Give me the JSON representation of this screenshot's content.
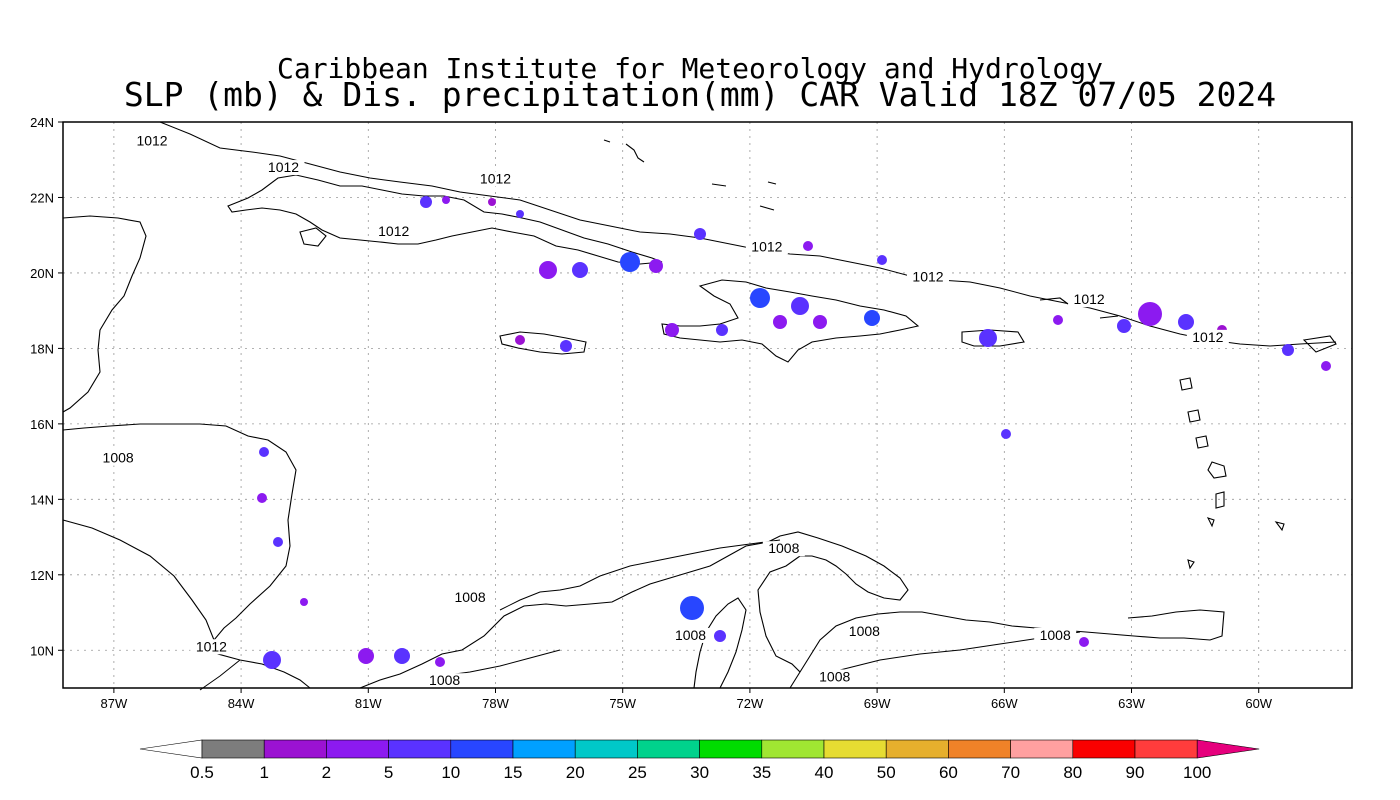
{
  "title": {
    "line1": "Caribbean Institute for Meteorology and Hydrology",
    "line2": "SLP (mb) & Dis. precipitation(mm) CAR Valid 18Z 07/05 2024"
  },
  "map": {
    "lon_range": [
      -88.2,
      -57.8
    ],
    "lat_range": [
      9,
      24
    ],
    "x_ticks": [
      "87W",
      "84W",
      "81W",
      "78W",
      "75W",
      "72W",
      "69W",
      "66W",
      "63W",
      "60W"
    ],
    "y_ticks": [
      "24N",
      "22N",
      "20N",
      "18N",
      "16N",
      "14N",
      "12N",
      "10N"
    ],
    "grid": true,
    "contour_labels": [
      {
        "text": "1012",
        "lon": -86.1,
        "lat": 23.4
      },
      {
        "text": "1012",
        "lon": -83.0,
        "lat": 22.7
      },
      {
        "text": "1012",
        "lon": -80.4,
        "lat": 21.0
      },
      {
        "text": "1012",
        "lon": -78.0,
        "lat": 22.4
      },
      {
        "text": "1012",
        "lon": -71.6,
        "lat": 20.6
      },
      {
        "text": "1012",
        "lon": -67.8,
        "lat": 19.8
      },
      {
        "text": "1012",
        "lon": -64.0,
        "lat": 19.2
      },
      {
        "text": "1012",
        "lon": -61.2,
        "lat": 18.2
      },
      {
        "text": "1008",
        "lon": -86.9,
        "lat": 15.0
      },
      {
        "text": "1012",
        "lon": -84.7,
        "lat": 10.0
      },
      {
        "text": "1008",
        "lon": -78.6,
        "lat": 11.3
      },
      {
        "text": "1008",
        "lon": -71.2,
        "lat": 12.6
      },
      {
        "text": "1008",
        "lon": -73.4,
        "lat": 10.3
      },
      {
        "text": "1008",
        "lon": -69.3,
        "lat": 10.4
      },
      {
        "text": "1008",
        "lon": -64.8,
        "lat": 10.3
      },
      {
        "text": "1008",
        "lon": -70.0,
        "lat": 9.2
      },
      {
        "text": "1008",
        "lon": -79.2,
        "lat": 9.1
      }
    ]
  },
  "colorbar": {
    "labels": [
      "0.5",
      "1",
      "2",
      "5",
      "10",
      "15",
      "20",
      "25",
      "30",
      "35",
      "40",
      "50",
      "60",
      "70",
      "80",
      "90",
      "100"
    ],
    "colors": [
      "#7d7d7d",
      "#9b12d2",
      "#8c1af0",
      "#5a32ff",
      "#2846ff",
      "#00a0ff",
      "#00c8c8",
      "#00d28c",
      "#00dc00",
      "#a0e632",
      "#e6dc32",
      "#e6af2d",
      "#f08228",
      "#ffa0a0",
      "#fa0000",
      "#ff3c3c"
    ],
    "low_arrow_color": "#ffffff",
    "high_arrow_color": "#e6007d"
  }
}
